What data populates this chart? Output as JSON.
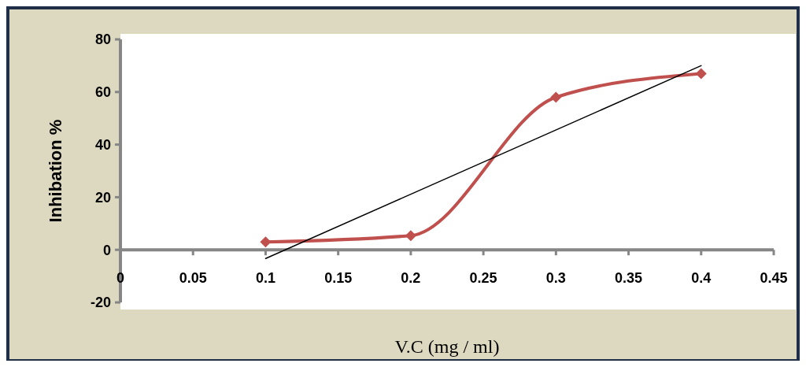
{
  "chart_data": {
    "type": "line",
    "xlabel": "V.C (mg / ml)",
    "ylabel": "Inhibation %",
    "xlim": [
      0,
      0.45
    ],
    "ylim": [
      -20,
      80
    ],
    "xticks": [
      0,
      0.05,
      0.1,
      0.15,
      0.2,
      0.25,
      0.3,
      0.35,
      0.4,
      0.45
    ],
    "yticks": [
      -20,
      0,
      20,
      40,
      60,
      80
    ],
    "grid": false,
    "series": [
      {
        "color": "#c0504d",
        "x": [
          0.1,
          0.2,
          0.3,
          0.4
        ],
        "values": [
          3,
          5.4,
          58,
          67
        ],
        "marker": "diamond"
      },
      {
        "type": "line",
        "color": "#000000",
        "x": [
          0.1,
          0.4
        ],
        "values": [
          -3.3,
          70
        ],
        "marker": "none"
      }
    ]
  }
}
